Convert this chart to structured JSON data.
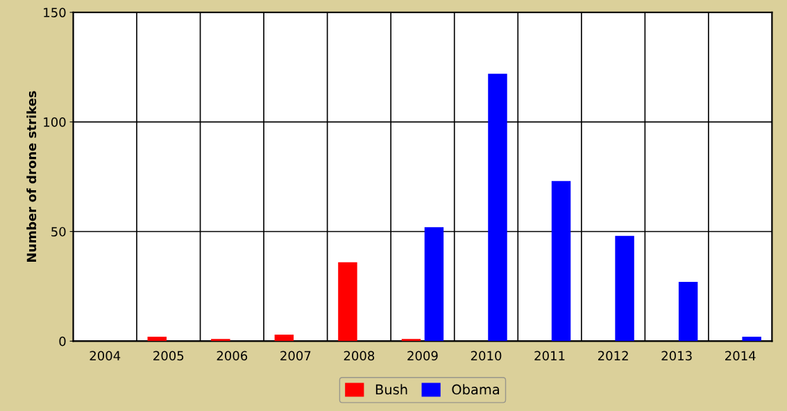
{
  "chart_data": {
    "type": "bar",
    "ylabel": "Number of drone strikes",
    "categories": [
      "2004",
      "2005",
      "2006",
      "2007",
      "2008",
      "2009",
      "2010",
      "2011",
      "2012",
      "2013",
      "2014"
    ],
    "series": [
      {
        "name": "Bush",
        "color": "#ff0000",
        "values": [
          0,
          2,
          1,
          3,
          36,
          1,
          null,
          null,
          null,
          null,
          null
        ]
      },
      {
        "name": "Obama",
        "color": "#0000ff",
        "values": [
          null,
          null,
          null,
          null,
          null,
          52,
          122,
          73,
          48,
          27,
          2
        ]
      }
    ],
    "ylim": [
      0,
      150
    ],
    "yticks": [
      0,
      50,
      100,
      150
    ],
    "grid": true,
    "legend": "bottom"
  }
}
